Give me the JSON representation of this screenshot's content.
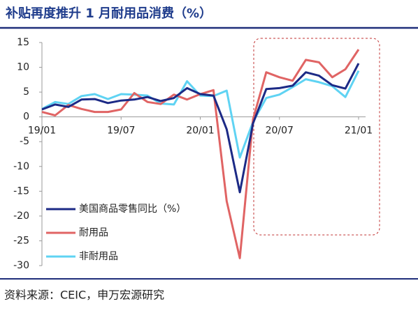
{
  "chart_data": {
    "type": "line",
    "title": "补贴再度推升 1 月耐用品消费（%）",
    "source": "资料来源：CEIC，申万宏源研究",
    "categories": [
      "19/01",
      null,
      null,
      null,
      null,
      null,
      "19/07",
      null,
      null,
      null,
      null,
      null,
      "20/01",
      null,
      null,
      null,
      null,
      null,
      "20/07",
      null,
      null,
      null,
      null,
      null,
      "21/01"
    ],
    "series": [
      {
        "name": "美国商品零售同比（%）",
        "color": "#1c2a86",
        "values": [
          1.5,
          2.5,
          2.0,
          3.5,
          3.6,
          2.8,
          3.3,
          3.5,
          4.0,
          3.2,
          3.8,
          5.8,
          4.6,
          4.3,
          -2.5,
          -15.2,
          -1.3,
          5.6,
          5.8,
          6.3,
          9.0,
          8.3,
          6.4,
          5.7,
          10.8
        ]
      },
      {
        "name": "耐用品",
        "color": "#e06464",
        "values": [
          1.0,
          0.3,
          2.4,
          1.6,
          1.0,
          1.0,
          1.5,
          4.8,
          3.0,
          2.6,
          4.5,
          3.5,
          4.6,
          5.4,
          -17.0,
          -28.5,
          -0.5,
          9.0,
          8.0,
          7.3,
          11.5,
          11.0,
          8.0,
          9.6,
          13.6
        ]
      },
      {
        "name": "非耐用品",
        "color": "#5fd3f3",
        "values": [
          1.6,
          3.0,
          2.6,
          4.2,
          4.6,
          3.6,
          4.6,
          4.5,
          4.3,
          2.7,
          2.5,
          7.2,
          4.3,
          4.2,
          5.3,
          -8.2,
          -1.0,
          3.8,
          4.5,
          6.0,
          7.6,
          7.0,
          6.2,
          4.0,
          9.3
        ]
      }
    ],
    "ylim": [
      -30,
      15
    ],
    "yticks": [
      15,
      10,
      5,
      0,
      -5,
      -10,
      -15,
      -20,
      -25,
      -30
    ],
    "grid": false,
    "legend": "lower-left"
  }
}
